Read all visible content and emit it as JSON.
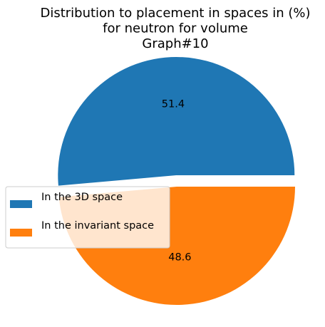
{
  "chart_data": {
    "type": "pie",
    "title": "Distribution to placement in spaces in (%)\nfor neutron for volume\nGraph#10",
    "slices": [
      {
        "label": "In the 3D space",
        "value": 51.4,
        "color": "#1f77b4",
        "exploded": true
      },
      {
        "label": "In the invariant space",
        "value": 48.6,
        "color": "#ff7f0e",
        "exploded": false
      }
    ],
    "legend_placement": "center-left"
  }
}
